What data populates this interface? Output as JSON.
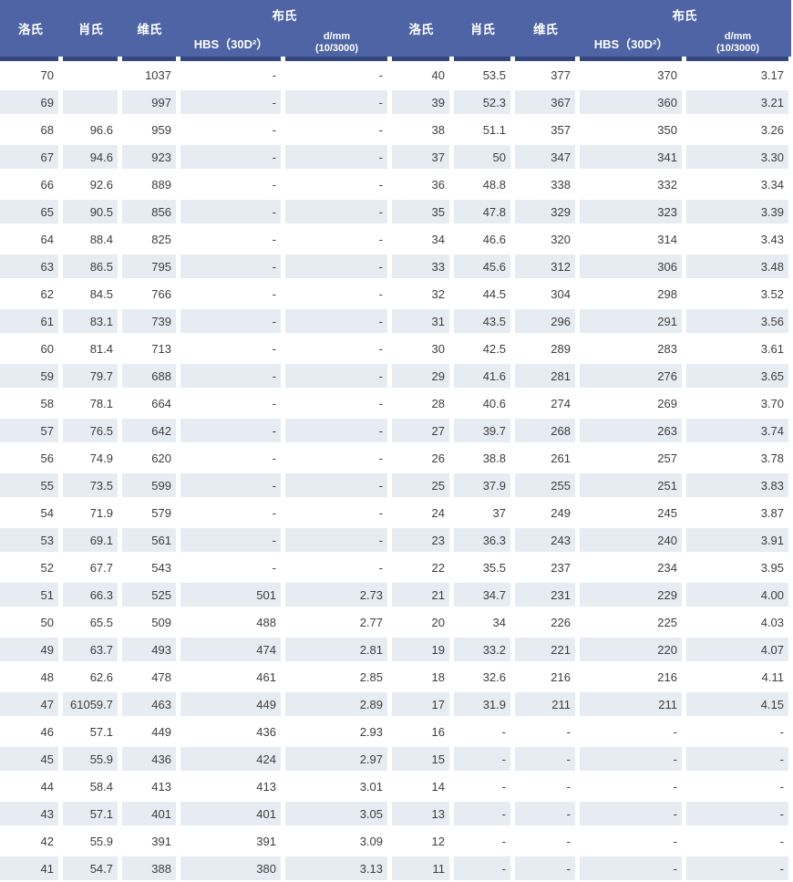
{
  "colors": {
    "header_bg": "#4e64a4",
    "header_divider": "#33477e",
    "row_alt_bg": "#e6ecf2",
    "header_text": "#ffffff",
    "body_text": "#3d3d3d"
  },
  "chart_data": {
    "type": "table",
    "title": "",
    "header": {
      "rockwell": "洛氏",
      "shore": "肖氏",
      "vickers": "维氏",
      "brinell": "布氏",
      "hbs": "HBS（30D²）",
      "dmm_line1": "d/mm",
      "dmm_line2": "(10/3000)"
    },
    "left_rows": [
      [
        "70",
        "",
        "1037",
        "-",
        "-"
      ],
      [
        "69",
        "",
        "997",
        "-",
        "-"
      ],
      [
        "68",
        "96.6",
        "959",
        "-",
        "-"
      ],
      [
        "67",
        "94.6",
        "923",
        "-",
        "-"
      ],
      [
        "66",
        "92.6",
        "889",
        "-",
        "-"
      ],
      [
        "65",
        "90.5",
        "856",
        "-",
        "-"
      ],
      [
        "64",
        "88.4",
        "825",
        "-",
        "-"
      ],
      [
        "63",
        "86.5",
        "795",
        "-",
        "-"
      ],
      [
        "62",
        "84.5",
        "766",
        "-",
        "-"
      ],
      [
        "61",
        "83.1",
        "739",
        "-",
        "-"
      ],
      [
        "60",
        "81.4",
        "713",
        "-",
        "-"
      ],
      [
        "59",
        "79.7",
        "688",
        "-",
        "-"
      ],
      [
        "58",
        "78.1",
        "664",
        "-",
        "-"
      ],
      [
        "57",
        "76.5",
        "642",
        "-",
        "-"
      ],
      [
        "56",
        "74.9",
        "620",
        "-",
        "-"
      ],
      [
        "55",
        "73.5",
        "599",
        "-",
        "-"
      ],
      [
        "54",
        "71.9",
        "579",
        "-",
        "-"
      ],
      [
        "53",
        "69.1",
        "561",
        "-",
        "-"
      ],
      [
        "52",
        "67.7",
        "543",
        "-",
        "-"
      ],
      [
        "51",
        "66.3",
        "525",
        "501",
        "2.73"
      ],
      [
        "50",
        "65.5",
        "509",
        "488",
        "2.77"
      ],
      [
        "49",
        "63.7",
        "493",
        "474",
        "2.81"
      ],
      [
        "48",
        "62.6",
        "478",
        "461",
        "2.85"
      ],
      [
        "47",
        "61059.7",
        "463",
        "449",
        "2.89"
      ],
      [
        "46",
        "57.1",
        "449",
        "436",
        "2.93"
      ],
      [
        "45",
        "55.9",
        "436",
        "424",
        "2.97"
      ],
      [
        "44",
        "58.4",
        "413",
        "413",
        "3.01"
      ],
      [
        "43",
        "57.1",
        "401",
        "401",
        "3.05"
      ],
      [
        "42",
        "55.9",
        "391",
        "391",
        "3.09"
      ],
      [
        "41",
        "54.7",
        "388",
        "380",
        "3.13"
      ]
    ],
    "right_rows": [
      [
        "40",
        "53.5",
        "377",
        "370",
        "3.17"
      ],
      [
        "39",
        "52.3",
        "367",
        "360",
        "3.21"
      ],
      [
        "38",
        "51.1",
        "357",
        "350",
        "3.26"
      ],
      [
        "37",
        "50",
        "347",
        "341",
        "3.30"
      ],
      [
        "36",
        "48.8",
        "338",
        "332",
        "3.34"
      ],
      [
        "35",
        "47.8",
        "329",
        "323",
        "3.39"
      ],
      [
        "34",
        "46.6",
        "320",
        "314",
        "3.43"
      ],
      [
        "33",
        "45.6",
        "312",
        "306",
        "3.48"
      ],
      [
        "32",
        "44.5",
        "304",
        "298",
        "3.52"
      ],
      [
        "31",
        "43.5",
        "296",
        "291",
        "3.56"
      ],
      [
        "30",
        "42.5",
        "289",
        "283",
        "3.61"
      ],
      [
        "29",
        "41.6",
        "281",
        "276",
        "3.65"
      ],
      [
        "28",
        "40.6",
        "274",
        "269",
        "3.70"
      ],
      [
        "27",
        "39.7",
        "268",
        "263",
        "3.74"
      ],
      [
        "26",
        "38.8",
        "261",
        "257",
        "3.78"
      ],
      [
        "25",
        "37.9",
        "255",
        "251",
        "3.83"
      ],
      [
        "24",
        "37",
        "249",
        "245",
        "3.87"
      ],
      [
        "23",
        "36.3",
        "243",
        "240",
        "3.91"
      ],
      [
        "22",
        "35.5",
        "237",
        "234",
        "3.95"
      ],
      [
        "21",
        "34.7",
        "231",
        "229",
        "4.00"
      ],
      [
        "20",
        "34",
        "226",
        "225",
        "4.03"
      ],
      [
        "19",
        "33.2",
        "221",
        "220",
        "4.07"
      ],
      [
        "18",
        "32.6",
        "216",
        "216",
        "4.11"
      ],
      [
        "17",
        "31.9",
        "211",
        "211",
        "4.15"
      ],
      [
        "16",
        "-",
        "-",
        "-",
        "-"
      ],
      [
        "15",
        "-",
        "-",
        "-",
        "-"
      ],
      [
        "14",
        "-",
        "-",
        "-",
        "-"
      ],
      [
        "13",
        "-",
        "-",
        "-",
        "-"
      ],
      [
        "12",
        "-",
        "-",
        "-",
        "-"
      ],
      [
        "11",
        "-",
        "-",
        "-",
        "-"
      ]
    ]
  }
}
